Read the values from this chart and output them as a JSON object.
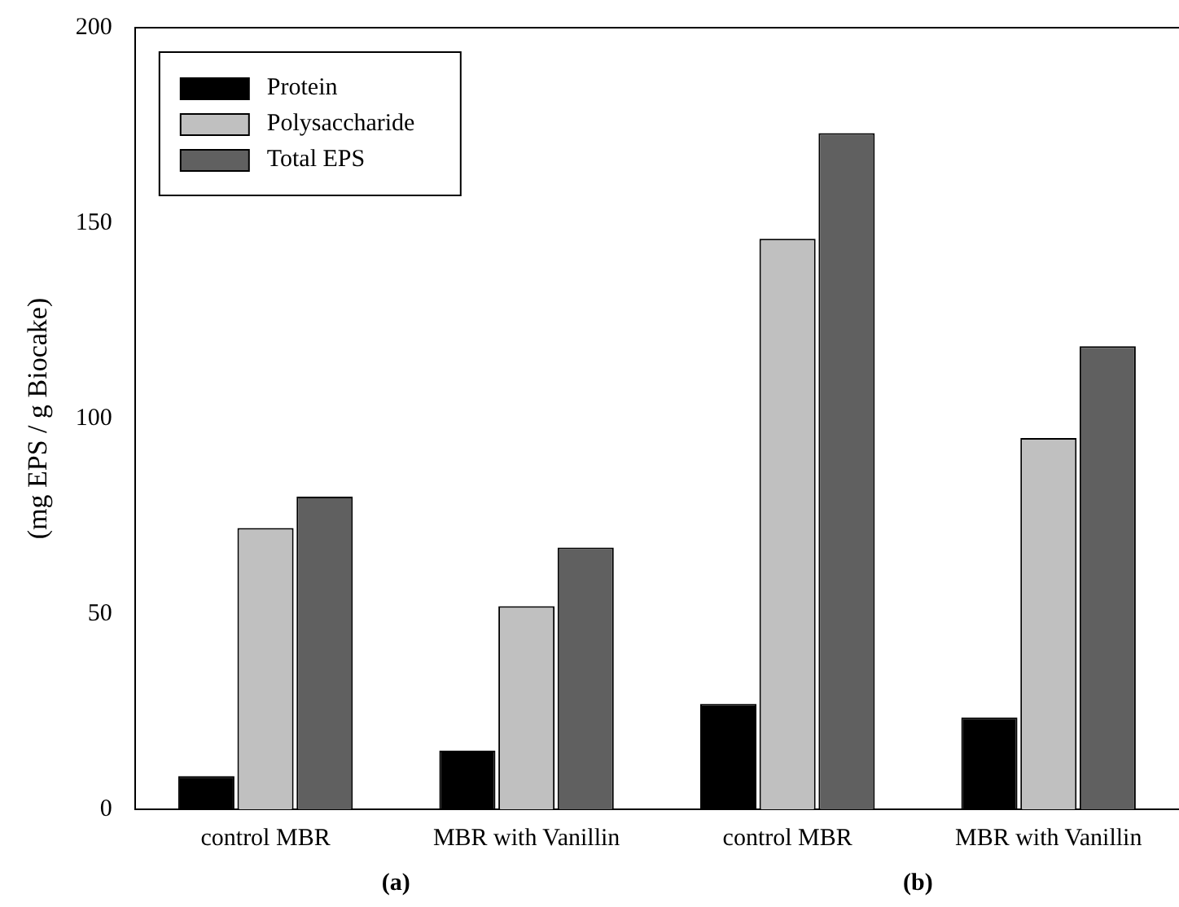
{
  "chart_data": {
    "type": "bar",
    "ylabel": "(mg EPS / g Biocake)",
    "categories": [
      "control MBR",
      "MBR with Vanillin",
      "control MBR",
      "MBR with Vanillin"
    ],
    "series": [
      {
        "name": "Protein",
        "color": "#000000",
        "values": [
          8.5,
          15,
          27,
          23.5
        ]
      },
      {
        "name": "Polysaccharide",
        "color": "#c0c0c0",
        "values": [
          72,
          52,
          146,
          95
        ]
      },
      {
        "name": "Total EPS",
        "color": "#606060",
        "values": [
          80,
          67,
          173,
          118.5
        ]
      }
    ],
    "ylim": [
      0,
      200
    ],
    "yticks": [
      0,
      50,
      100,
      150,
      200
    ],
    "grid": false,
    "legend": "top left",
    "annotations": [
      "(a)",
      "(b)"
    ]
  }
}
